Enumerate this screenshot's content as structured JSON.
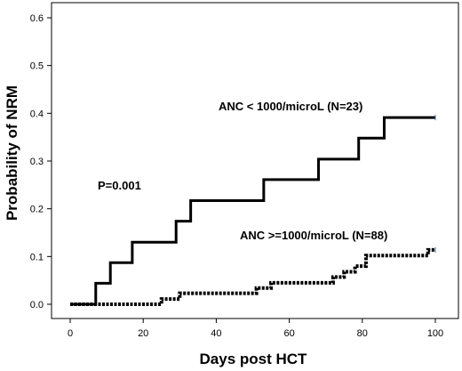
{
  "chart_data": {
    "type": "line",
    "title": "",
    "xlabel": "Days post HCT",
    "ylabel": "Probability of NRM",
    "xlim": [
      0,
      100
    ],
    "ylim": [
      0,
      0.6
    ],
    "grid": false,
    "xticks": [
      "0",
      "20",
      "40",
      "60",
      "80",
      "100"
    ],
    "yticks": [
      "0.0",
      "0.1",
      "0.2",
      "0.3",
      "0.4",
      "0.5",
      "0.6"
    ],
    "annotations": {
      "p_value": "P=0.001",
      "series_low": "ANC < 1000/microL (N=23)",
      "series_high": "ANC >=1000/microL (N=88)"
    },
    "series": [
      {
        "name": "ANC < 1000/microL (N=23)",
        "style": "solid",
        "color": "#000000",
        "x": [
          0,
          7,
          11,
          17,
          25,
          29,
          33,
          53,
          68,
          79,
          86,
          100
        ],
        "y": [
          0,
          0.044,
          0.087,
          0.13,
          0.13,
          0.174,
          0.217,
          0.261,
          0.304,
          0.348,
          0.391,
          0.391
        ]
      },
      {
        "name": "ANC >=1000/microL (N=88)",
        "style": "dashed",
        "color": "#000000",
        "x": [
          0,
          7,
          25,
          30,
          51,
          55,
          72,
          75,
          78,
          81,
          98,
          100
        ],
        "y": [
          0,
          0,
          0.011,
          0.023,
          0.034,
          0.045,
          0.057,
          0.068,
          0.08,
          0.102,
          0.114,
          0.114
        ]
      }
    ]
  }
}
